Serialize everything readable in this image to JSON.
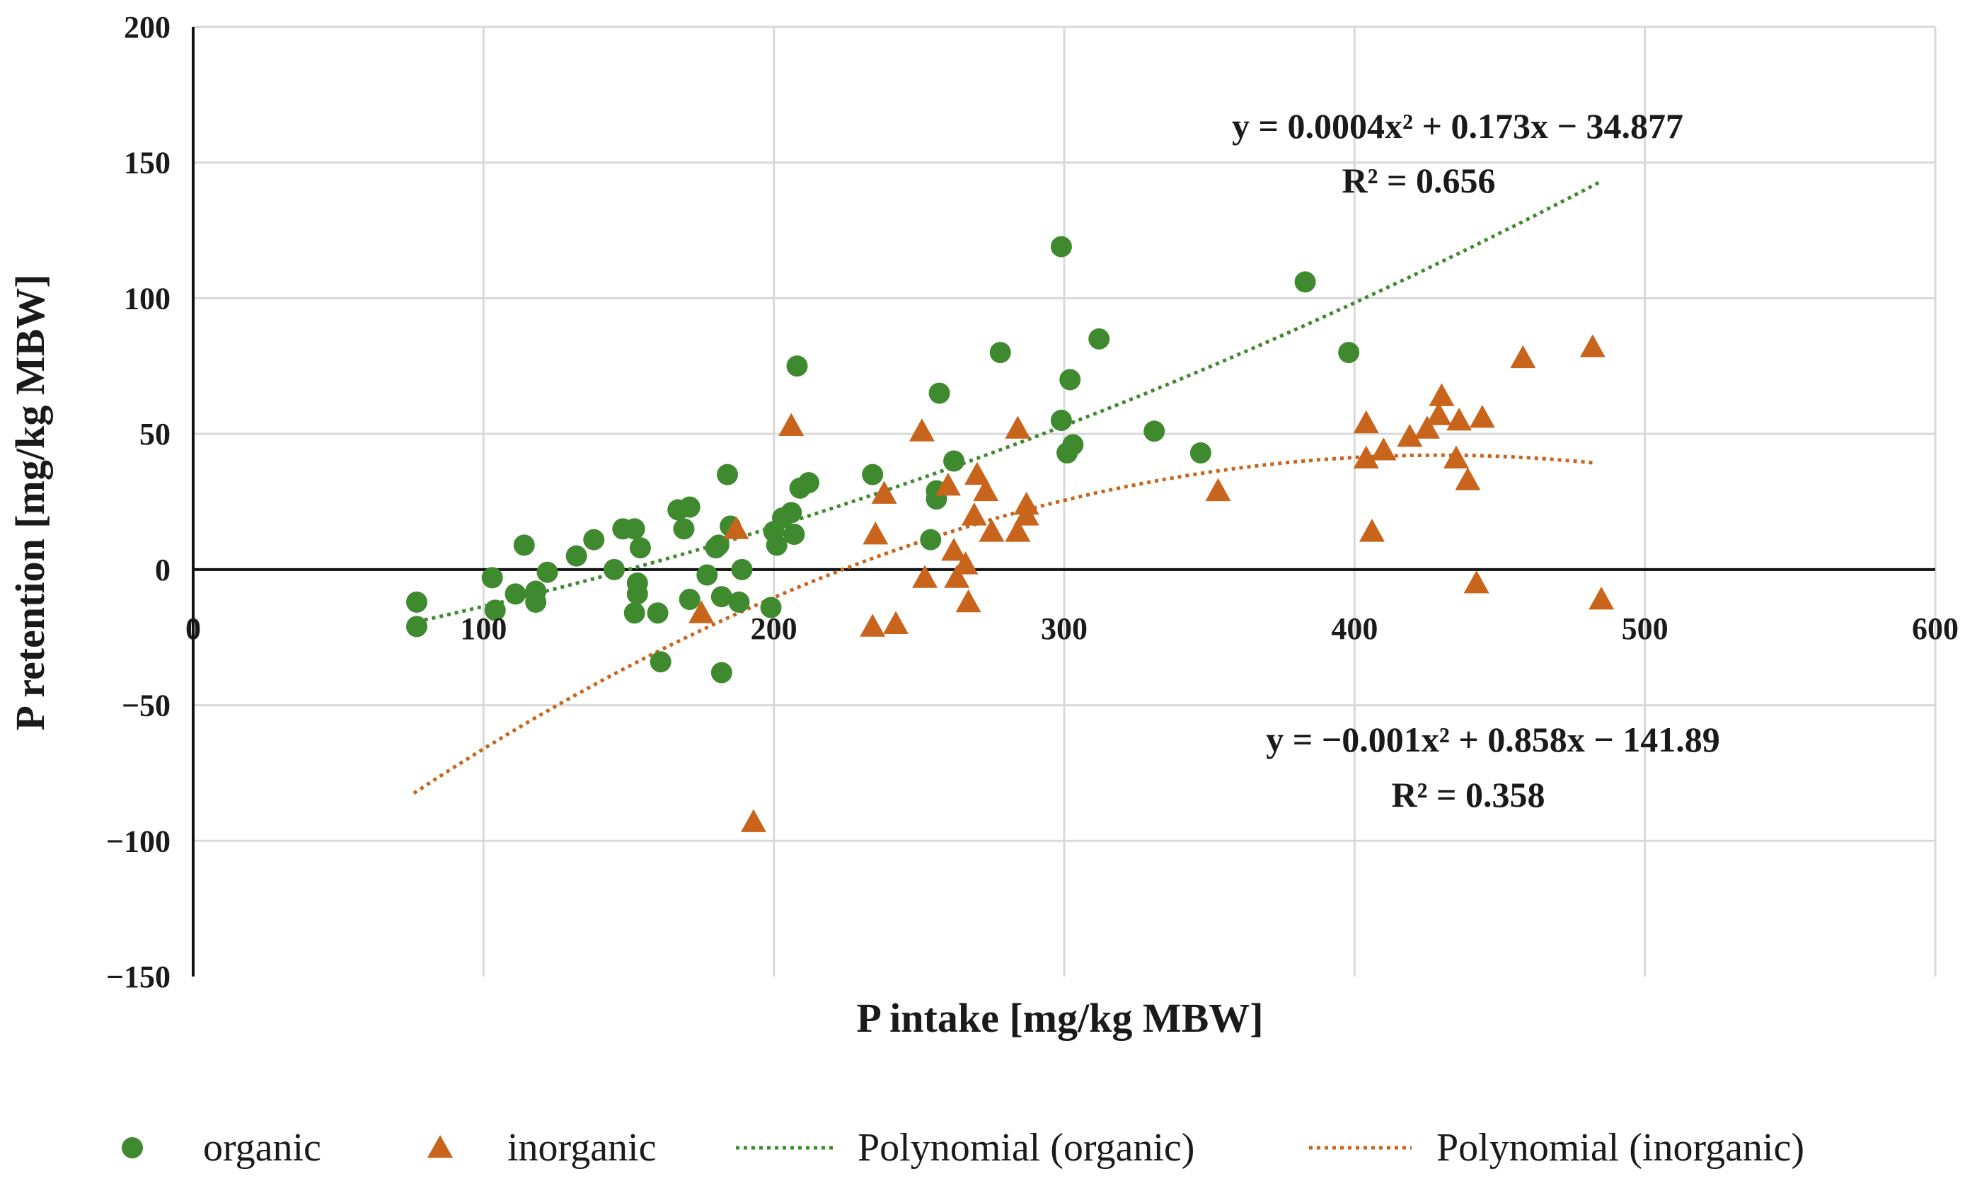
{
  "chart_data": {
    "type": "scatter",
    "title": "",
    "xlabel": "P intake [mg/kg MBW]",
    "ylabel": "P retention [mg/kg MBW]",
    "xlim": [
      0,
      600
    ],
    "ylim": [
      -150,
      200
    ],
    "x_ticks": [
      0,
      100,
      200,
      300,
      400,
      500,
      600
    ],
    "y_ticks": [
      -150,
      -100,
      -50,
      0,
      50,
      100,
      150,
      200
    ],
    "grid": true,
    "legend_position": "bottom",
    "colors": {
      "organic": "#3f8a2e",
      "inorganic": "#c8641c"
    },
    "series": [
      {
        "name": "organic",
        "marker": "circle",
        "points": [
          [
            77,
            -12
          ],
          [
            77,
            -21
          ],
          [
            103,
            -3
          ],
          [
            104,
            -15
          ],
          [
            111,
            -9
          ],
          [
            114,
            9
          ],
          [
            118,
            -8
          ],
          [
            118,
            -12
          ],
          [
            122,
            -1
          ],
          [
            132,
            5
          ],
          [
            138,
            11
          ],
          [
            145,
            0
          ],
          [
            148,
            15
          ],
          [
            152,
            15
          ],
          [
            152,
            -16
          ],
          [
            153,
            -5
          ],
          [
            153,
            -9
          ],
          [
            154,
            8
          ],
          [
            160,
            -16
          ],
          [
            161,
            -34
          ],
          [
            167,
            22
          ],
          [
            169,
            15
          ],
          [
            171,
            23
          ],
          [
            171,
            -11
          ],
          [
            177,
            -2
          ],
          [
            180,
            8
          ],
          [
            181,
            9
          ],
          [
            182,
            -10
          ],
          [
            182,
            -38
          ],
          [
            184,
            35
          ],
          [
            185,
            16
          ],
          [
            188,
            -12
          ],
          [
            189,
            0
          ],
          [
            199,
            -14
          ],
          [
            200,
            14
          ],
          [
            201,
            9
          ],
          [
            203,
            19
          ],
          [
            206,
            21
          ],
          [
            207,
            13
          ],
          [
            208,
            75
          ],
          [
            209,
            30
          ],
          [
            212,
            32
          ],
          [
            234,
            35
          ],
          [
            254,
            11
          ],
          [
            256,
            29
          ],
          [
            256,
            26
          ],
          [
            257,
            65
          ],
          [
            262,
            40
          ],
          [
            278,
            80
          ],
          [
            299,
            55
          ],
          [
            299,
            119
          ],
          [
            301,
            43
          ],
          [
            302,
            70
          ],
          [
            303,
            46
          ],
          [
            312,
            85
          ],
          [
            331,
            51
          ],
          [
            347,
            43
          ],
          [
            383,
            106
          ],
          [
            398,
            80
          ]
        ]
      },
      {
        "name": "inorganic",
        "marker": "triangle",
        "points": [
          [
            175,
            -16
          ],
          [
            187,
            15
          ],
          [
            193,
            -93
          ],
          [
            206,
            53
          ],
          [
            234,
            -21
          ],
          [
            235,
            13
          ],
          [
            238,
            28
          ],
          [
            242,
            -20
          ],
          [
            251,
            51
          ],
          [
            252,
            -3
          ],
          [
            260,
            31
          ],
          [
            262,
            7
          ],
          [
            263,
            -3
          ],
          [
            266,
            2
          ],
          [
            267,
            -12
          ],
          [
            269,
            20
          ],
          [
            270,
            35
          ],
          [
            273,
            29
          ],
          [
            275,
            14
          ],
          [
            284,
            52
          ],
          [
            284,
            14
          ],
          [
            287,
            24
          ],
          [
            287,
            20
          ],
          [
            353,
            29
          ],
          [
            404,
            54
          ],
          [
            404,
            41
          ],
          [
            406,
            14
          ],
          [
            410,
            44
          ],
          [
            419,
            49
          ],
          [
            425,
            52
          ],
          [
            429,
            57
          ],
          [
            430,
            64
          ],
          [
            435,
            41
          ],
          [
            436,
            55
          ],
          [
            439,
            33
          ],
          [
            442,
            -5
          ],
          [
            444,
            56
          ],
          [
            458,
            78
          ],
          [
            482,
            82
          ],
          [
            485,
            -11
          ]
        ]
      }
    ],
    "trendlines": [
      {
        "name": "Polynomial (organic)",
        "series": "organic",
        "coefficients": [
          0.0004,
          0.173,
          -34.877
        ],
        "x_range": [
          77,
          485
        ],
        "equation_label": "y = 0.0004x² + 0.173x − 34.877",
        "r2_label": "R² = 0.656"
      },
      {
        "name": "Polynomial (inorganic)",
        "series": "inorganic",
        "coefficients": [
          -0.001,
          0.858,
          -141.89
        ],
        "x_range": [
          76,
          482
        ],
        "equation_label": "y = −0.001x² + 0.858x − 141.89",
        "r2_label": "R² = 0.358"
      }
    ]
  }
}
